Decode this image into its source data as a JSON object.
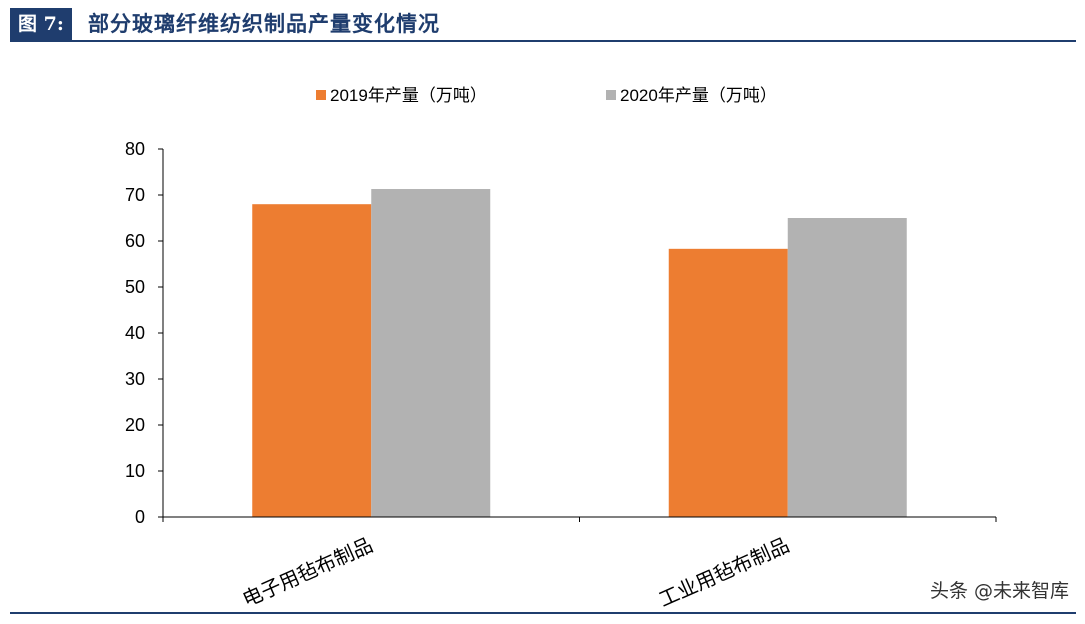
{
  "figure": {
    "label": "图 7:",
    "title": "部分玻璃纤维纺织制品产量变化情况"
  },
  "watermark": "头条 @未来智库",
  "colors": {
    "header_bg": "#1f3d6e",
    "series_2019": "#ed7d31",
    "series_2020": "#b2b2b2"
  },
  "chart_data": {
    "type": "bar",
    "categories": [
      "电子用毡布制品",
      "工业用毡布制品"
    ],
    "series": [
      {
        "name": "2019年产量（万吨）",
        "values": [
          68,
          58.3
        ]
      },
      {
        "name": "2020年产量（万吨）",
        "values": [
          71.3,
          65
        ]
      }
    ],
    "title": "",
    "xlabel": "",
    "ylabel": "",
    "ylim": [
      0,
      80
    ],
    "yticks": [
      "0",
      "10",
      "20",
      "30",
      "40",
      "50",
      "60",
      "70",
      "80"
    ],
    "grid": false,
    "legend": "top"
  }
}
